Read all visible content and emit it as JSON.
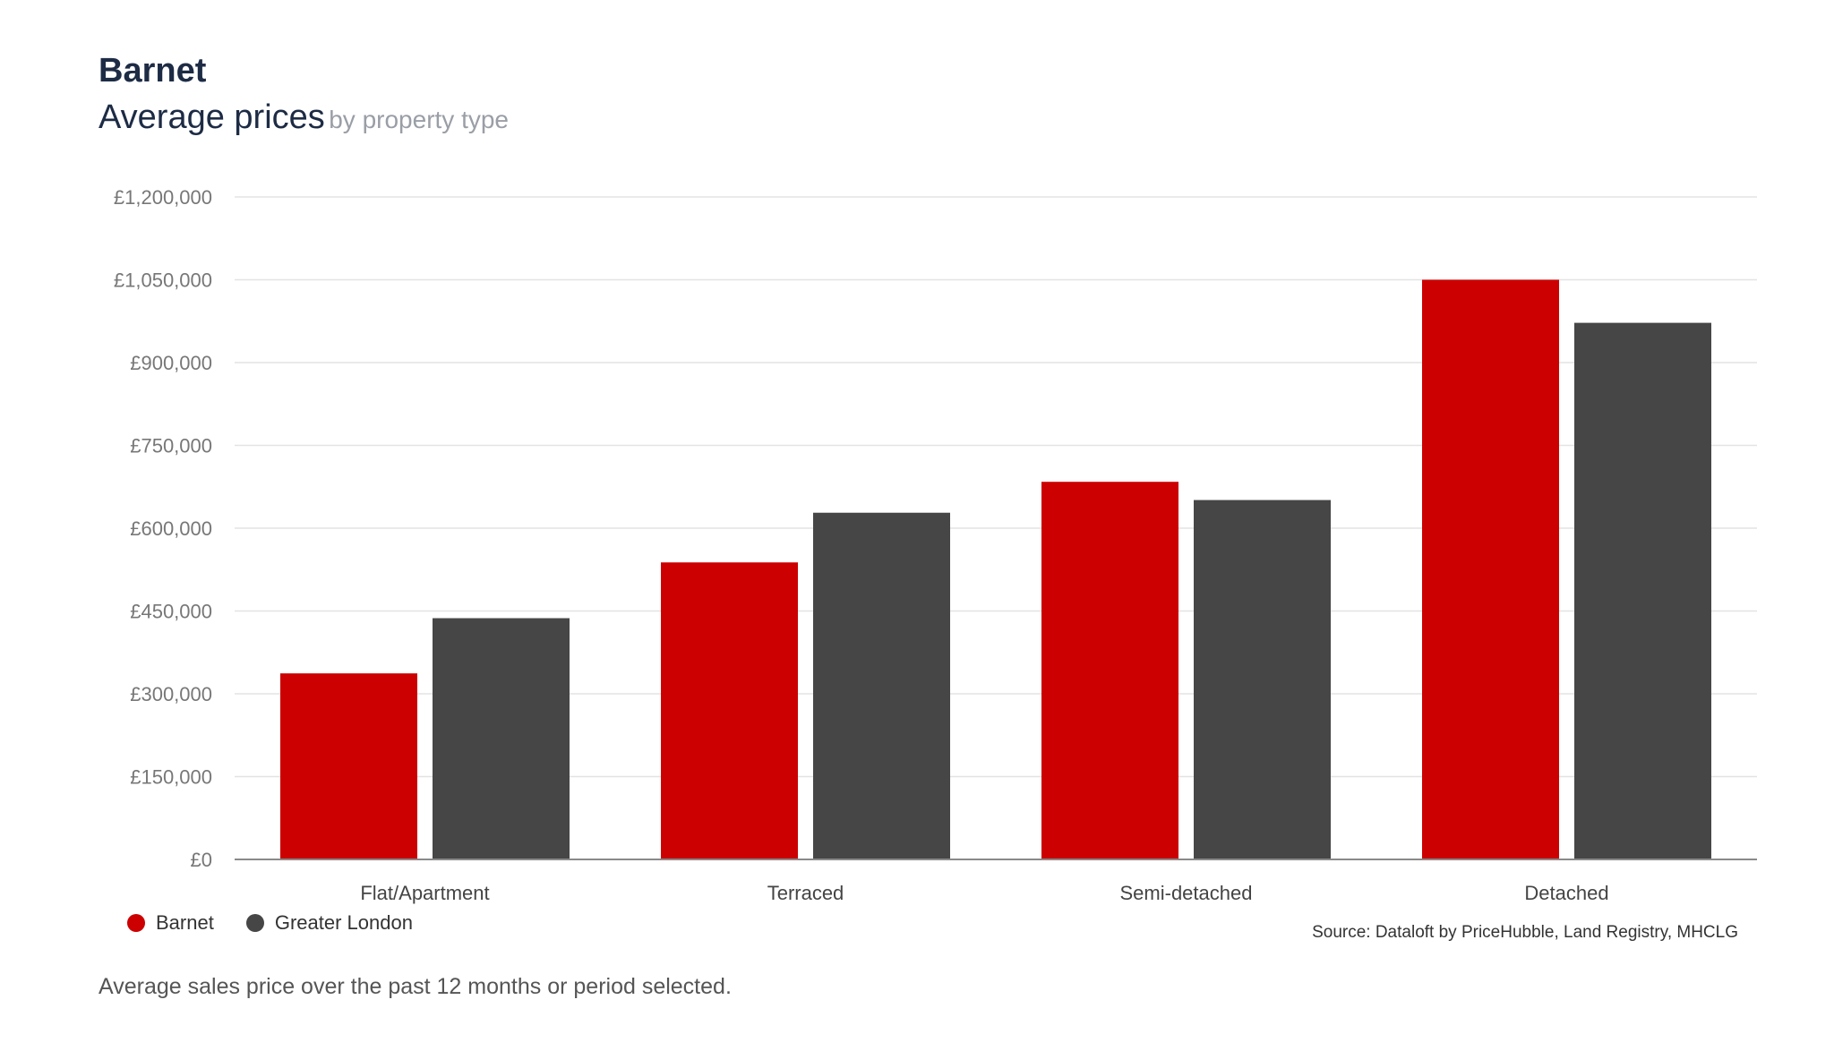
{
  "header": {
    "title": "Barnet",
    "subtitle_main": "Average prices",
    "subtitle_sub": "by property type"
  },
  "legend": {
    "items": [
      {
        "label": "Barnet",
        "color": "#cc0000"
      },
      {
        "label": "Greater London",
        "color": "#464646"
      }
    ]
  },
  "source": "Source: Dataloft by PriceHubble, Land Registry, MHCLG",
  "footnote": "Average sales price over the past 12 months or period selected.",
  "chart_data": {
    "type": "bar",
    "title": "Average prices by property type",
    "xlabel": "",
    "ylabel": "",
    "categories": [
      "Flat/Apartment",
      "Terraced",
      "Semi-detached",
      "Detached"
    ],
    "series": [
      {
        "name": "Barnet",
        "color": "#cc0000",
        "values": [
          337000,
          538000,
          684000,
          1050000
        ]
      },
      {
        "name": "Greater London",
        "color": "#464646",
        "values": [
          437000,
          628000,
          651000,
          972000
        ]
      }
    ],
    "ylim": [
      0,
      1200000
    ],
    "yticks": [
      0,
      150000,
      300000,
      450000,
      600000,
      750000,
      900000,
      1050000,
      1200000
    ],
    "ytick_labels": [
      "£0",
      "£150,000",
      "£300,000",
      "£450,000",
      "£600,000",
      "£750,000",
      "£900,000",
      "£1,050,000",
      "£1,200,000"
    ],
    "grid": true,
    "legend_position": "bottom-left"
  }
}
